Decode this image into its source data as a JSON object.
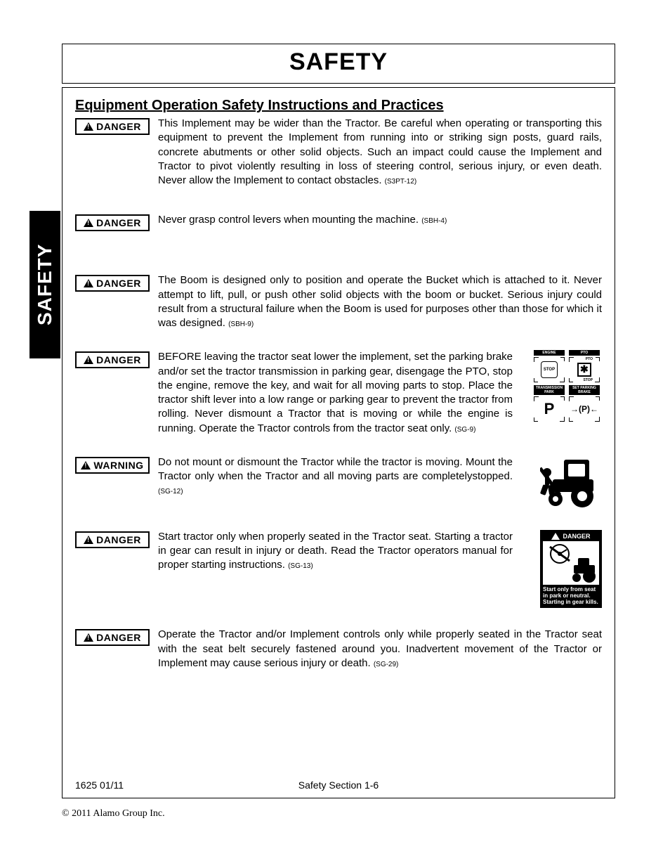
{
  "page_title": "SAFETY",
  "side_tab": "SAFETY",
  "section_heading": "Equipment Operation Safety Instructions and Practices",
  "labels": {
    "danger": "DANGER",
    "warning": "WARNING"
  },
  "entries": [
    {
      "level": "danger",
      "text": "This Implement may be wider than the Tractor.   Be careful when operating or transporting this equipment to prevent the Implement from running into or striking sign posts, guard rails, concrete abutments or other solid objects.  Such an impact could cause the Implement and Tractor to pivot violently resulting in loss of steering control, serious injury, or even death.  Never allow the Implement to contact obstacles.",
      "ref": "(S3PT-12)",
      "icon": null
    },
    {
      "level": "danger",
      "text": "Never grasp control levers when mounting the machine.",
      "ref": "(SBH-4)",
      "icon": null
    },
    {
      "level": "danger",
      "text": "The Boom is designed only to position and operate the Bucket which is attached to it.  Never attempt to lift, pull, or push other solid objects with the boom or bucket.   Serious injury could result from a structural failure when the Boom is used for purposes other than those for which it was designed.",
      "ref": "(SBH-9)",
      "icon": null
    },
    {
      "level": "danger",
      "text": "BEFORE leaving the tractor seat lower the implement, set the parking brake and/or set the tractor transmission in parking gear, disengage the PTO, stop the engine, remove the key, and wait for all moving parts to stop.  Place the tractor shift lever into a low range or parking gear to prevent the tractor from rolling.  Never dismount a Tractor that is moving or while the engine is running.  Operate the Tractor controls from the tractor seat only.",
      "ref": "(SG-9)",
      "icon": "shutdown"
    },
    {
      "level": "warning",
      "text": "Do not mount or dismount the Tractor while the tractor is moving. Mount the Tractor only when the Tractor and all moving parts are completelystopped.",
      "ref": "(SG-12)",
      "icon": "tractor"
    },
    {
      "level": "danger",
      "text": "Start tractor only when properly seated in the Tractor seat.  Starting a tractor in gear can result in injury or death.  Read the Tractor operators manual for proper starting instructions.",
      "ref": "(SG-13)",
      "icon": "start_placard"
    },
    {
      "level": "danger",
      "text": "Operate the Tractor and/or Implement controls only while properly seated in the Tractor seat with the seat belt securely fastened around you.   Inadvertent movement of the Tractor or Implement may cause serious injury or death.",
      "ref": "(SG-29)",
      "icon": null
    }
  ],
  "shutdown_diagram": {
    "cells": [
      {
        "header": "ENGINE",
        "inner_type": "stop",
        "inner_text": "STOP"
      },
      {
        "header": "PTO",
        "inner_type": "gear",
        "sub": "PTO",
        "sub2": "STOP"
      },
      {
        "header": "TRANSMISSION PARK",
        "inner_type": "P",
        "inner_text": "P"
      },
      {
        "header": "SET PARKING BRAKE",
        "inner_type": "pbrake",
        "inner_text": "→(P)←"
      }
    ]
  },
  "start_placard": {
    "header": "DANGER",
    "caption": "Start only from seat in park or neutral.\nStarting in gear kills."
  },
  "footer": {
    "left": "1625   01/11",
    "center": "Safety Section 1-6"
  },
  "copyright": "© 2011 Alamo Group Inc.",
  "colors": {
    "text": "#000000",
    "background": "#ffffff",
    "tab_bg": "#000000",
    "tab_fg": "#ffffff"
  },
  "typography": {
    "title_fontsize_pt": 26,
    "heading_fontsize_pt": 15,
    "body_fontsize_pt": 11,
    "ref_fontsize_pt": 7,
    "font_family": "Arial"
  }
}
